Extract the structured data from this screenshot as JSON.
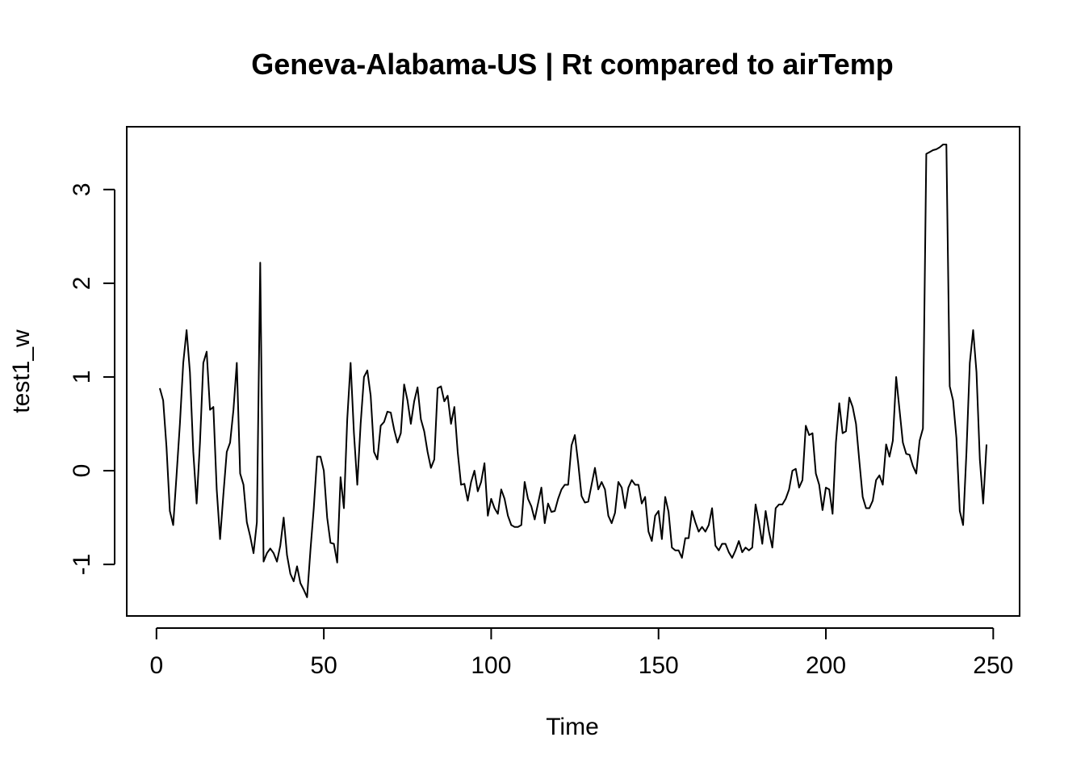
{
  "chart_data": {
    "type": "line",
    "title": "Geneva-Alabama-US | Rt compared to airTemp",
    "xlabel": "Time",
    "ylabel": "test1_w",
    "xlim": [
      -8.88,
      257.88
    ],
    "ylim": [
      -1.55,
      3.67
    ],
    "x_ticks": [
      0,
      50,
      100,
      150,
      200,
      250
    ],
    "x_tick_labels": [
      "0",
      "50",
      "100",
      "150",
      "200",
      "250"
    ],
    "y_ticks": [
      -1,
      0,
      1,
      2,
      3
    ],
    "y_tick_labels": [
      "-1",
      "0",
      "1",
      "2",
      "3"
    ],
    "grid": false,
    "legend": "none",
    "series": [
      {
        "x_start": 1,
        "values": [
          0.88,
          0.75,
          0.25,
          -0.43,
          -0.58,
          -0.05,
          0.5,
          1.15,
          1.5,
          1.05,
          0.2,
          -0.35,
          0.3,
          1.15,
          1.27,
          0.65,
          0.68,
          -0.2,
          -0.73,
          -0.25,
          0.2,
          0.3,
          0.65,
          1.15,
          -0.03,
          -0.15,
          -0.55,
          -0.7,
          -0.88,
          -0.55,
          2.22,
          -0.97,
          -0.88,
          -0.83,
          -0.88,
          -0.97,
          -0.8,
          -0.5,
          -0.9,
          -1.1,
          -1.18,
          -1.02,
          -1.2,
          -1.27,
          -1.35,
          -0.85,
          -0.4,
          0.15,
          0.15,
          0.0,
          -0.5,
          -0.77,
          -0.78,
          -0.98,
          -0.07,
          -0.4,
          0.55,
          1.15,
          0.4,
          -0.15,
          0.5,
          1.0,
          1.07,
          0.8,
          0.2,
          0.12,
          0.48,
          0.52,
          0.63,
          0.62,
          0.44,
          0.3,
          0.4,
          0.92,
          0.75,
          0.5,
          0.74,
          0.89,
          0.55,
          0.42,
          0.2,
          0.03,
          0.12,
          0.88,
          0.9,
          0.74,
          0.8,
          0.5,
          0.68,
          0.2,
          -0.15,
          -0.14,
          -0.32,
          -0.12,
          0.0,
          -0.22,
          -0.12,
          0.08,
          -0.48,
          -0.3,
          -0.4,
          -0.46,
          -0.2,
          -0.3,
          -0.48,
          -0.58,
          -0.6,
          -0.6,
          -0.58,
          -0.12,
          -0.3,
          -0.38,
          -0.52,
          -0.35,
          -0.18,
          -0.56,
          -0.35,
          -0.44,
          -0.43,
          -0.3,
          -0.2,
          -0.15,
          -0.15,
          0.27,
          0.38,
          0.08,
          -0.27,
          -0.34,
          -0.33,
          -0.15,
          0.03,
          -0.2,
          -0.12,
          -0.2,
          -0.48,
          -0.56,
          -0.45,
          -0.12,
          -0.18,
          -0.4,
          -0.18,
          -0.1,
          -0.15,
          -0.15,
          -0.35,
          -0.28,
          -0.65,
          -0.75,
          -0.48,
          -0.43,
          -0.73,
          -0.28,
          -0.44,
          -0.82,
          -0.85,
          -0.85,
          -0.93,
          -0.72,
          -0.72,
          -0.43,
          -0.55,
          -0.65,
          -0.6,
          -0.65,
          -0.58,
          -0.4,
          -0.8,
          -0.85,
          -0.78,
          -0.78,
          -0.87,
          -0.93,
          -0.85,
          -0.75,
          -0.87,
          -0.82,
          -0.85,
          -0.82,
          -0.36,
          -0.55,
          -0.78,
          -0.43,
          -0.65,
          -0.82,
          -0.4,
          -0.36,
          -0.36,
          -0.3,
          -0.2,
          0.0,
          0.02,
          -0.18,
          -0.1,
          0.48,
          0.38,
          0.4,
          -0.03,
          -0.15,
          -0.42,
          -0.18,
          -0.2,
          -0.46,
          0.3,
          0.72,
          0.4,
          0.42,
          0.78,
          0.68,
          0.5,
          0.1,
          -0.28,
          -0.4,
          -0.4,
          -0.32,
          -0.1,
          -0.05,
          -0.15,
          0.28,
          0.15,
          0.32,
          1.0,
          0.65,
          0.3,
          0.18,
          0.17,
          0.05,
          -0.03,
          0.32,
          0.45,
          3.38,
          3.4,
          3.42,
          3.43,
          3.45,
          3.48,
          3.48,
          0.9,
          0.75,
          0.35,
          -0.43,
          -0.58,
          0.2,
          1.15,
          1.5,
          1.05,
          0.12,
          -0.35,
          0.28
        ]
      }
    ]
  }
}
